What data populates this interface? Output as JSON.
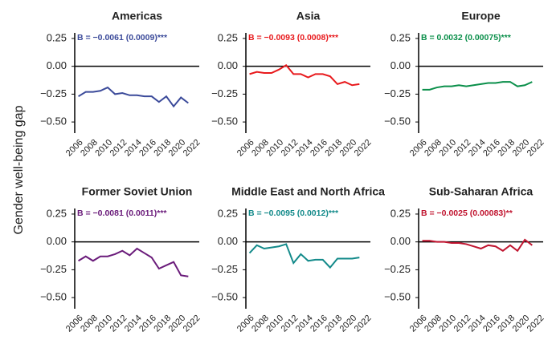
{
  "ylabel": "Gender well-being gap",
  "chart_data": [
    {
      "type": "line",
      "title": "Americas",
      "annotation": "B = −0.0061 (0.0009)***",
      "x": [
        2006,
        2007,
        2008,
        2009,
        2010,
        2011,
        2012,
        2013,
        2014,
        2015,
        2016,
        2017,
        2018,
        2019,
        2020,
        2021
      ],
      "series": [
        {
          "name": "Americas",
          "color": "#3b4a9a",
          "values": [
            -0.27,
            -0.23,
            -0.23,
            -0.22,
            -0.19,
            -0.25,
            -0.24,
            -0.26,
            -0.26,
            -0.27,
            -0.27,
            -0.32,
            -0.27,
            -0.36,
            -0.28,
            -0.33
          ]
        }
      ],
      "xlim": [
        2005.5,
        2022.5
      ],
      "xticks": [
        2006,
        2008,
        2010,
        2012,
        2014,
        2016,
        2018,
        2020,
        2022
      ],
      "ylim": [
        -0.6,
        0.3
      ],
      "yticks": [
        {
          "value": 0.25,
          "label": "0.25"
        },
        {
          "value": 0,
          "label": "0.00"
        },
        {
          "value": -0.25,
          "label": "−0.25"
        },
        {
          "value": -0.5,
          "label": "−0.50"
        }
      ]
    },
    {
      "type": "line",
      "title": "Asia",
      "annotation": "B = −0.0093 (0.0008)***",
      "x": [
        2006,
        2007,
        2008,
        2009,
        2010,
        2011,
        2012,
        2013,
        2014,
        2015,
        2016,
        2017,
        2018,
        2019,
        2020,
        2021
      ],
      "series": [
        {
          "name": "Asia",
          "color": "#e8191c",
          "values": [
            -0.07,
            -0.05,
            -0.06,
            -0.06,
            -0.03,
            0.01,
            -0.07,
            -0.07,
            -0.1,
            -0.07,
            -0.07,
            -0.09,
            -0.16,
            -0.14,
            -0.17,
            -0.16
          ]
        }
      ],
      "xlim": [
        2005.5,
        2022.5
      ],
      "xticks": [
        2006,
        2008,
        2010,
        2012,
        2014,
        2016,
        2018,
        2020,
        2022
      ],
      "ylim": [
        -0.6,
        0.3
      ],
      "yticks": [
        {
          "value": 0.25,
          "label": "0.25"
        },
        {
          "value": 0,
          "label": "0.00"
        },
        {
          "value": -0.25,
          "label": "−0.25"
        },
        {
          "value": -0.5,
          "label": "−0.50"
        }
      ]
    },
    {
      "type": "line",
      "title": "Europe",
      "annotation": "B = 0.0032 (0.00075)***",
      "x": [
        2006,
        2007,
        2008,
        2009,
        2010,
        2011,
        2012,
        2013,
        2014,
        2015,
        2016,
        2017,
        2018,
        2019,
        2020,
        2021
      ],
      "series": [
        {
          "name": "Europe",
          "color": "#0a8f4a",
          "values": [
            -0.21,
            -0.21,
            -0.19,
            -0.18,
            -0.18,
            -0.17,
            -0.18,
            -0.17,
            -0.16,
            -0.15,
            -0.15,
            -0.14,
            -0.14,
            -0.18,
            -0.17,
            -0.14
          ]
        }
      ],
      "xlim": [
        2005.5,
        2022.5
      ],
      "xticks": [
        2006,
        2008,
        2010,
        2012,
        2014,
        2016,
        2018,
        2020,
        2022
      ],
      "ylim": [
        -0.6,
        0.3
      ],
      "yticks": [
        {
          "value": 0.25,
          "label": "0.25"
        },
        {
          "value": 0,
          "label": "0.00"
        },
        {
          "value": -0.25,
          "label": "−0.25"
        },
        {
          "value": -0.5,
          "label": "−0.50"
        }
      ]
    },
    {
      "type": "line",
      "title": "Former Soviet Union",
      "annotation": "B = −0.0081 (0.0011)***",
      "x": [
        2006,
        2007,
        2008,
        2009,
        2010,
        2011,
        2012,
        2013,
        2014,
        2015,
        2016,
        2017,
        2018,
        2019,
        2020,
        2021
      ],
      "series": [
        {
          "name": "Former Soviet Union",
          "color": "#6a1b7a",
          "values": [
            -0.17,
            -0.13,
            -0.17,
            -0.13,
            -0.13,
            -0.11,
            -0.08,
            -0.12,
            -0.06,
            -0.1,
            -0.14,
            -0.24,
            -0.21,
            -0.18,
            -0.3,
            -0.31
          ]
        }
      ],
      "xlim": [
        2005.5,
        2022.5
      ],
      "xticks": [
        2006,
        2008,
        2010,
        2012,
        2014,
        2016,
        2018,
        2020,
        2022
      ],
      "ylim": [
        -0.6,
        0.3
      ],
      "yticks": [
        {
          "value": 0.25,
          "label": "0.25"
        },
        {
          "value": 0,
          "label": "0.00"
        },
        {
          "value": -0.25,
          "label": "−0.25"
        },
        {
          "value": -0.5,
          "label": "−0.50"
        }
      ]
    },
    {
      "type": "line",
      "title": "Middle East and North Africa",
      "annotation": "B = −0.0095 (0.0012)***",
      "x": [
        2006,
        2007,
        2008,
        2009,
        2010,
        2011,
        2012,
        2013,
        2014,
        2015,
        2016,
        2017,
        2018,
        2019,
        2020,
        2021
      ],
      "series": [
        {
          "name": "Middle East and North Africa",
          "color": "#138a8a",
          "values": [
            -0.1,
            -0.03,
            -0.06,
            -0.05,
            -0.04,
            -0.02,
            -0.19,
            -0.11,
            -0.17,
            -0.16,
            -0.16,
            -0.23,
            -0.15,
            -0.15,
            -0.15,
            -0.14
          ]
        }
      ],
      "xlim": [
        2005.5,
        2022.5
      ],
      "xticks": [
        2006,
        2008,
        2010,
        2012,
        2014,
        2016,
        2018,
        2020,
        2022
      ],
      "ylim": [
        -0.6,
        0.3
      ],
      "yticks": [
        {
          "value": 0.25,
          "label": "0.25"
        },
        {
          "value": 0,
          "label": "0.00"
        },
        {
          "value": -0.25,
          "label": "−0.25"
        },
        {
          "value": -0.5,
          "label": "−0.50"
        }
      ]
    },
    {
      "type": "line",
      "title": "Sub-Saharan Africa",
      "annotation": "B = −0.0025 (0.00083)**",
      "x": [
        2006,
        2007,
        2008,
        2009,
        2010,
        2011,
        2012,
        2013,
        2014,
        2015,
        2016,
        2017,
        2018,
        2019,
        2020,
        2021
      ],
      "series": [
        {
          "name": "Sub-Saharan Africa",
          "color": "#c0142f",
          "values": [
            0.01,
            0.01,
            0.0,
            0.0,
            -0.01,
            -0.01,
            -0.02,
            -0.04,
            -0.06,
            -0.03,
            -0.04,
            -0.08,
            -0.03,
            -0.08,
            0.02,
            -0.03
          ]
        }
      ],
      "xlim": [
        2005.5,
        2022.5
      ],
      "xticks": [
        2006,
        2008,
        2010,
        2012,
        2014,
        2016,
        2018,
        2020,
        2022
      ],
      "ylim": [
        -0.6,
        0.3
      ],
      "yticks": [
        {
          "value": 0.25,
          "label": "0.25"
        },
        {
          "value": 0,
          "label": "0.00"
        },
        {
          "value": -0.25,
          "label": "−0.25"
        },
        {
          "value": -0.5,
          "label": "−0.50"
        }
      ]
    }
  ]
}
